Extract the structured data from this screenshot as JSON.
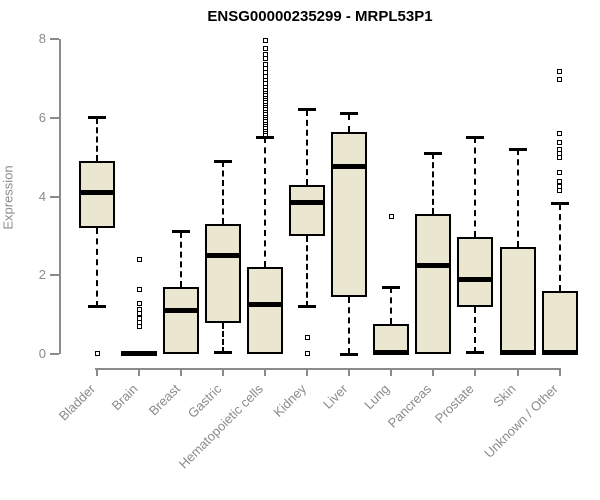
{
  "chart_data": {
    "type": "boxplot",
    "title": "ENSG00000235299 - MRPL53P1",
    "ylabel": "Expression",
    "xlabel": "",
    "ylim": [
      0,
      8
    ],
    "yticks": [
      0,
      2,
      4,
      6,
      8
    ],
    "grid": false,
    "legend": "none",
    "categories": [
      "Bladder",
      "Brain",
      "Breast",
      "Gastric",
      "Hematopoietic cells",
      "Kidney",
      "Liver",
      "Lung",
      "Pancreas",
      "Prostate",
      "Skin",
      "Unknown / Other"
    ],
    "series": [
      {
        "category": "Bladder",
        "whisker_low": 1.2,
        "q1": 3.2,
        "median": 4.1,
        "q3": 4.9,
        "whisker_high": 6.0,
        "outliers": [
          0.02
        ]
      },
      {
        "category": "Brain",
        "whisker_low": 0,
        "q1": 0,
        "median": 0.02,
        "q3": 0.05,
        "whisker_high": 0.05,
        "outliers": [
          2.4,
          1.65,
          1.27,
          1.14,
          1.02,
          0.91,
          0.81,
          0.7
        ]
      },
      {
        "category": "Breast",
        "whisker_low": 0,
        "q1": 0,
        "median": 1.1,
        "q3": 1.7,
        "whisker_high": 3.1,
        "outliers": []
      },
      {
        "category": "Gastric",
        "whisker_low": 0.03,
        "q1": 0.8,
        "median": 2.5,
        "q3": 3.3,
        "whisker_high": 4.9,
        "outliers": []
      },
      {
        "category": "Hematopoietic cells",
        "whisker_low": 0,
        "q1": 0,
        "median": 1.25,
        "q3": 2.2,
        "whisker_high": 5.5,
        "outliers": [
          5.58,
          5.64,
          5.7,
          5.76,
          5.82,
          5.88,
          5.94,
          6.0,
          6.06,
          6.12,
          6.18,
          6.24,
          6.3,
          6.36,
          6.42,
          6.48,
          6.54,
          6.6,
          6.66,
          6.72,
          6.8,
          6.88,
          6.96,
          7.05,
          7.15,
          7.25,
          7.35,
          7.5,
          7.6,
          7.75,
          7.95
        ]
      },
      {
        "category": "Kidney",
        "whisker_low": 1.2,
        "q1": 3.0,
        "median": 3.85,
        "q3": 4.3,
        "whisker_high": 6.2,
        "outliers": [
          0.43,
          0.02
        ]
      },
      {
        "category": "Liver",
        "whisker_low": 0,
        "q1": 1.45,
        "median": 4.75,
        "q3": 5.65,
        "whisker_high": 6.1,
        "outliers": []
      },
      {
        "category": "Lung",
        "whisker_low": 0,
        "q1": 0,
        "median": 0.05,
        "q3": 0.75,
        "whisker_high": 1.7,
        "outliers": [
          3.5
        ]
      },
      {
        "category": "Pancreas",
        "whisker_low": 0,
        "q1": 0,
        "median": 2.25,
        "q3": 3.55,
        "whisker_high": 5.1,
        "outliers": []
      },
      {
        "category": "Prostate",
        "whisker_low": 0.03,
        "q1": 1.2,
        "median": 1.9,
        "q3": 2.97,
        "whisker_high": 5.5,
        "outliers": []
      },
      {
        "category": "Skin",
        "whisker_low": 0,
        "q1": 0,
        "median": 0.05,
        "q3": 2.72,
        "whisker_high": 5.2,
        "outliers": []
      },
      {
        "category": "Unknown / Other",
        "whisker_low": 0,
        "q1": 0,
        "median": 0.05,
        "q3": 1.6,
        "whisker_high": 3.82,
        "outliers": [
          4.15,
          4.25,
          4.38,
          4.6,
          4.98,
          5.08,
          5.2,
          5.36,
          5.6,
          6.98,
          7.18
        ]
      }
    ],
    "colors": {
      "box_fill": "#EBE6CF",
      "box_border": "#000000",
      "median": "#000000",
      "whisker": "#000000",
      "axis": "#8b8b8b",
      "tick_label": "#8b8b8b",
      "title": "#000000",
      "background": "#ffffff"
    }
  }
}
